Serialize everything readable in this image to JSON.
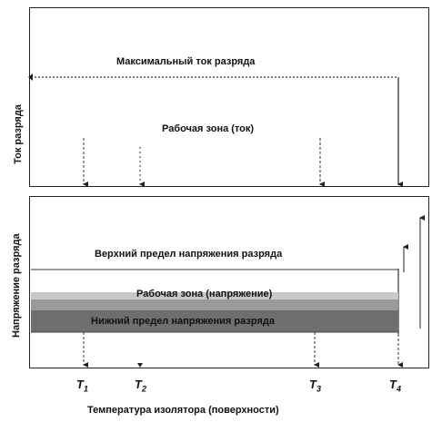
{
  "top_panel": {
    "y_axis_label": "Ток разряда",
    "max_current_label": "Максимальный ток разряда",
    "work_zone_label": "Рабочая зона (ток)"
  },
  "bottom_panel": {
    "y_axis_label": "Напряжение разряда",
    "upper_limit_label": "Верхний предел напряжения разряда",
    "work_zone_label": "Рабочая зона (напряжение)",
    "lower_limit_label": "Нижний предел напряжения разряда"
  },
  "x_axis_label": "Температура изолятора (поверхности)",
  "temperature_marks": [
    {
      "base": "T",
      "sub": "1"
    },
    {
      "base": "T",
      "sub": "2"
    },
    {
      "base": "T",
      "sub": "3"
    },
    {
      "base": "T",
      "sub": "4"
    }
  ],
  "colors": {
    "frame": "#222222",
    "band_dark": "#6e6e6e",
    "band_mid": "#9a9a9a",
    "band_light": "#c8c8c8",
    "upper_line": "#999999"
  }
}
